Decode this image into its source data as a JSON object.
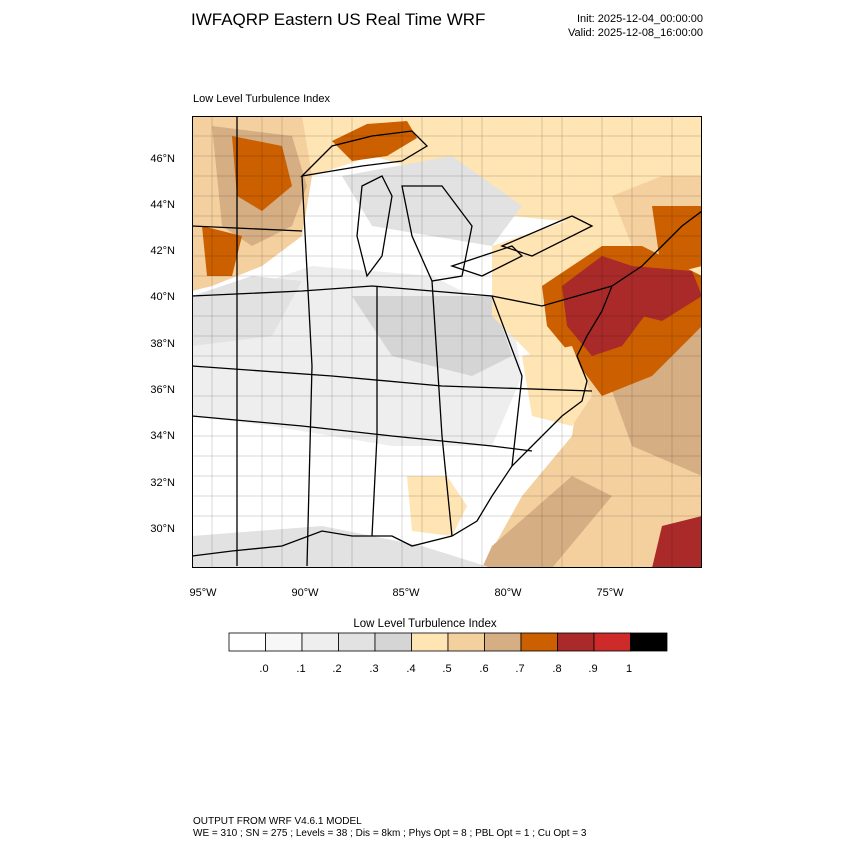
{
  "header": {
    "title": "IWFAQRP Eastern US Real Time WRF",
    "init": "Init: 2025-12-04_00:00:00",
    "valid": "Valid: 2025-12-08_16:00:00"
  },
  "map": {
    "subtitle": "Low Level Turbulence Index",
    "lat_labels": [
      "46°N",
      "44°N",
      "42°N",
      "40°N",
      "38°N",
      "36°N",
      "34°N",
      "32°N",
      "30°N"
    ],
    "lon_labels": [
      "95°W",
      "90°W",
      "85°W",
      "80°W",
      "75°W"
    ]
  },
  "colorbar": {
    "title": "Low Level Turbulence Index",
    "labels": [
      ".0",
      ".1",
      ".2",
      ".3",
      ".4",
      ".5",
      ".6",
      ".7",
      ".8",
      ".9",
      "1"
    ],
    "colors": [
      "#ffffff",
      "#f7f7f7",
      "#eeeeee",
      "#e2e2e2",
      "#d5d5d5",
      "#ffe4b4",
      "#f5d09f",
      "#d6ae84",
      "#cc5f00",
      "#aa2a2a",
      "#cf2a2a",
      "#000000"
    ]
  },
  "footer": {
    "line1": "OUTPUT FROM WRF V4.6.1 MODEL",
    "line2": "WE = 310 ; SN = 275 ; Levels = 38 ; Dis = 8km ; Phys Opt = 8 ; PBL Opt = 1 ; Cu Opt = 3"
  }
}
